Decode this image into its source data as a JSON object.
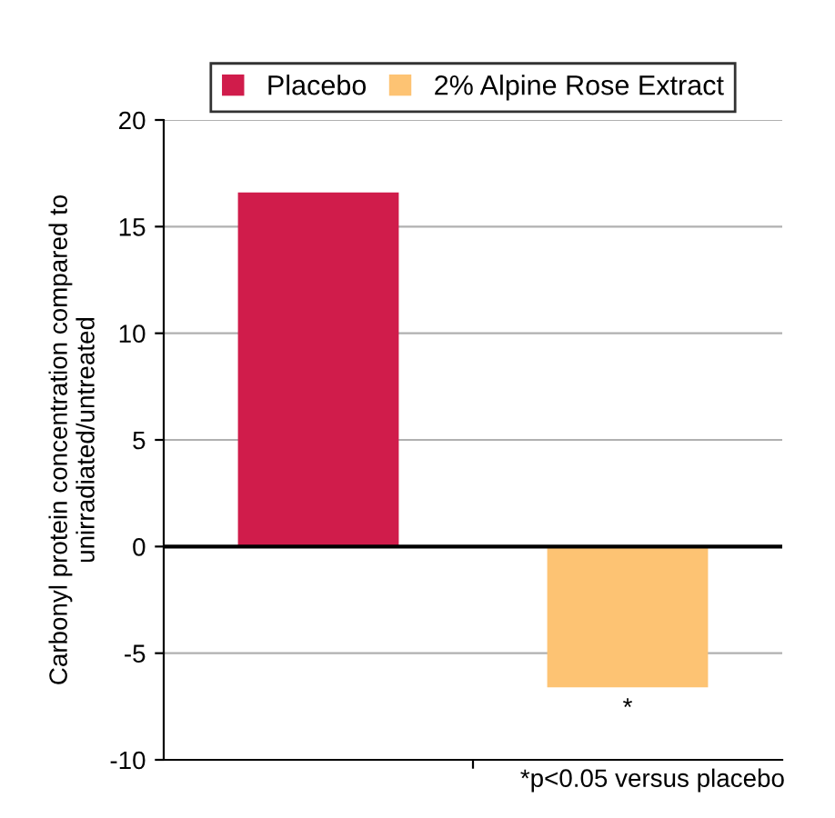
{
  "chart_data": {
    "type": "bar",
    "ylabel": "Carbonyl protein concentration compared to\nunirradiated/untreated",
    "categories": [
      null,
      null
    ],
    "series": [
      {
        "name": "Placebo",
        "color": "#d01c4b",
        "values": [
          16.6,
          null
        ]
      },
      {
        "name": "2% Alpine Rose Extract",
        "color": "#fdc373",
        "values": [
          null,
          -6.6
        ]
      }
    ],
    "ylim": [
      -10,
      20
    ],
    "yticks": [
      -10,
      -5,
      0,
      5,
      10,
      15,
      20
    ],
    "ref_lines": [
      {
        "axis": "y",
        "value": 0,
        "color": "#000000"
      }
    ],
    "grid": "y",
    "legend": "top",
    "annotations": [
      {
        "text": "*",
        "y": -6.6
      },
      "*p<0.05 versus placebo"
    ]
  }
}
